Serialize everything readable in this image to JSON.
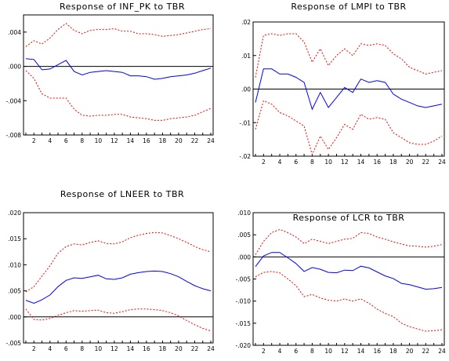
{
  "chart_data": [
    {
      "type": "line",
      "title": "Response of INF_PK to TBR",
      "x": [
        1,
        2,
        3,
        4,
        5,
        6,
        7,
        8,
        9,
        10,
        11,
        12,
        13,
        14,
        15,
        16,
        17,
        18,
        19,
        20,
        21,
        22,
        23,
        24
      ],
      "ylim": [
        -0.008,
        0.006
      ],
      "yticks": [
        ".004",
        ".000",
        "-.004",
        "-.008"
      ],
      "ytick_values": [
        0.004,
        0.0,
        -0.004,
        -0.008
      ],
      "xticks": [
        "2",
        "4",
        "6",
        "8",
        "10",
        "12",
        "14",
        "16",
        "18",
        "20",
        "22",
        "24"
      ],
      "series": [
        {
          "role": "response",
          "color": "#0000ff",
          "style": "solid",
          "values": [
            0.0009,
            0.0008,
            -0.0004,
            -0.0003,
            0.0002,
            0.0007,
            -0.0006,
            -0.001,
            -0.0007,
            -0.0006,
            -0.0005,
            -0.0006,
            -0.0007,
            -0.0011,
            -0.0011,
            -0.0012,
            -0.0015,
            -0.0014,
            -0.0012,
            -0.0011,
            -0.001,
            -0.0008,
            -0.0005,
            -0.0002
          ]
        },
        {
          "role": "upper",
          "color": "#ff0000",
          "style": "dashed",
          "values": [
            0.0023,
            0.003,
            0.0026,
            0.0033,
            0.0043,
            0.005,
            0.0042,
            0.0038,
            0.0042,
            0.0043,
            0.0043,
            0.0044,
            0.0041,
            0.0041,
            0.0038,
            0.0038,
            0.0037,
            0.0035,
            0.0036,
            0.0037,
            0.0039,
            0.0041,
            0.0043,
            0.0044
          ]
        },
        {
          "role": "lower",
          "color": "#ff0000",
          "style": "dashed",
          "values": [
            -0.0005,
            -0.0014,
            -0.0032,
            -0.0037,
            -0.0037,
            -0.0037,
            -0.005,
            -0.0057,
            -0.0058,
            -0.0057,
            -0.0057,
            -0.0056,
            -0.0056,
            -0.0059,
            -0.006,
            -0.0061,
            -0.0063,
            -0.0063,
            -0.0061,
            -0.006,
            -0.0059,
            -0.0057,
            -0.0053,
            -0.0049
          ]
        }
      ]
    },
    {
      "type": "line",
      "title": "Response of LMPI to TBR",
      "x": [
        1,
        2,
        3,
        4,
        5,
        6,
        7,
        8,
        9,
        10,
        11,
        12,
        13,
        14,
        15,
        16,
        17,
        18,
        19,
        20,
        21,
        22,
        23,
        24
      ],
      "ylim": [
        -0.02,
        0.02
      ],
      "yticks": [
        ".02",
        ".01",
        ".00",
        "-.01",
        "-.02"
      ],
      "ytick_values": [
        0.02,
        0.01,
        0.0,
        -0.01,
        -0.02
      ],
      "xticks": [
        "2",
        "4",
        "6",
        "8",
        "10",
        "12",
        "14",
        "16",
        "18",
        "20",
        "22",
        "24"
      ],
      "series": [
        {
          "role": "response",
          "color": "#0000ff",
          "style": "solid",
          "values": [
            -0.004,
            0.006,
            0.006,
            0.0045,
            0.0045,
            0.0035,
            0.002,
            -0.006,
            -0.001,
            -0.0055,
            -0.0025,
            0.0005,
            -0.001,
            0.003,
            0.002,
            0.0025,
            0.002,
            -0.0015,
            -0.003,
            -0.004,
            -0.005,
            -0.0055,
            -0.005,
            -0.0045
          ]
        },
        {
          "role": "upper",
          "color": "#ff0000",
          "style": "dashed",
          "values": [
            0.0035,
            0.016,
            0.0165,
            0.016,
            0.0165,
            0.0165,
            0.014,
            0.008,
            0.012,
            0.007,
            0.01,
            0.012,
            0.01,
            0.0135,
            0.013,
            0.0135,
            0.013,
            0.0105,
            0.009,
            0.0065,
            0.0055,
            0.0045,
            0.005,
            0.0055
          ]
        },
        {
          "role": "lower",
          "color": "#ff0000",
          "style": "dashed",
          "values": [
            -0.012,
            -0.0035,
            -0.0045,
            -0.007,
            -0.008,
            -0.0095,
            -0.011,
            -0.0195,
            -0.014,
            -0.018,
            -0.0145,
            -0.0105,
            -0.012,
            -0.0075,
            -0.009,
            -0.0085,
            -0.009,
            -0.013,
            -0.0145,
            -0.016,
            -0.0165,
            -0.0165,
            -0.0155,
            -0.014
          ]
        }
      ]
    },
    {
      "type": "line",
      "title": "Response of LNEER to TBR",
      "x": [
        1,
        2,
        3,
        4,
        5,
        6,
        7,
        8,
        9,
        10,
        11,
        12,
        13,
        14,
        15,
        16,
        17,
        18,
        19,
        20,
        21,
        22,
        23,
        24
      ],
      "ylim": [
        -0.005,
        0.02
      ],
      "yticks": [
        ".020",
        ".015",
        ".010",
        ".005",
        ".000",
        "-.005"
      ],
      "ytick_values": [
        0.02,
        0.015,
        0.01,
        0.005,
        0.0,
        -0.005
      ],
      "xticks": [
        "2",
        "4",
        "6",
        "8",
        "10",
        "12",
        "14",
        "16",
        "18",
        "20",
        "22",
        "24"
      ],
      "series": [
        {
          "role": "response",
          "color": "#0000ff",
          "style": "solid",
          "values": [
            0.0032,
            0.0026,
            0.0033,
            0.0042,
            0.0058,
            0.007,
            0.0075,
            0.0074,
            0.0077,
            0.008,
            0.0073,
            0.0072,
            0.0075,
            0.0082,
            0.0085,
            0.0087,
            0.0088,
            0.0087,
            0.0083,
            0.0077,
            0.0068,
            0.006,
            0.0054,
            0.005
          ]
        },
        {
          "role": "upper",
          "color": "#ff0000",
          "style": "dashed",
          "values": [
            0.0048,
            0.0058,
            0.0078,
            0.0098,
            0.0122,
            0.0135,
            0.014,
            0.0138,
            0.0143,
            0.0146,
            0.0141,
            0.014,
            0.0144,
            0.0152,
            0.0157,
            0.016,
            0.0162,
            0.0161,
            0.0156,
            0.015,
            0.0143,
            0.0135,
            0.0129,
            0.0125
          ]
        },
        {
          "role": "lower",
          "color": "#ff0000",
          "style": "dashed",
          "values": [
            0.0015,
            -0.0005,
            -0.0006,
            -0.0003,
            0.0003,
            0.0008,
            0.0012,
            0.0011,
            0.0012,
            0.0013,
            0.0008,
            0.0007,
            0.001,
            0.0014,
            0.0015,
            0.0015,
            0.0014,
            0.0012,
            0.0008,
            0.0002,
            -0.0007,
            -0.0015,
            -0.0022,
            -0.0027
          ]
        }
      ]
    },
    {
      "type": "line",
      "title": "Response of LCR to TBR",
      "x": [
        1,
        2,
        3,
        4,
        5,
        6,
        7,
        8,
        9,
        10,
        11,
        12,
        13,
        14,
        15,
        16,
        17,
        18,
        19,
        20,
        21,
        22,
        23,
        24
      ],
      "ylim": [
        -0.02,
        0.01
      ],
      "yticks": [
        ".010",
        ".005",
        ".000",
        "-.005",
        "-.010",
        "-.015",
        "-.020"
      ],
      "ytick_values": [
        0.01,
        0.005,
        0.0,
        -0.005,
        -0.01,
        -0.015,
        -0.02
      ],
      "xticks": [
        "2",
        "4",
        "6",
        "8",
        "10",
        "12",
        "14",
        "16",
        "18",
        "20",
        "22",
        "24"
      ],
      "series": [
        {
          "role": "response",
          "color": "#0000ff",
          "style": "solid",
          "values": [
            -0.0022,
            0.0002,
            0.001,
            0.001,
            -0.0002,
            -0.0015,
            -0.0033,
            -0.0024,
            -0.0028,
            -0.0035,
            -0.0036,
            -0.003,
            -0.0031,
            -0.0021,
            -0.0025,
            -0.0034,
            -0.0043,
            -0.0049,
            -0.006,
            -0.0063,
            -0.0068,
            -0.0073,
            -0.0072,
            -0.0069
          ]
        },
        {
          "role": "upper",
          "color": "#ff0000",
          "style": "dashed",
          "values": [
            0.0005,
            0.0035,
            0.0055,
            0.0062,
            0.0055,
            0.0045,
            0.003,
            0.004,
            0.0035,
            0.003,
            0.0035,
            0.004,
            0.0042,
            0.0055,
            0.0053,
            0.0045,
            0.004,
            0.0034,
            0.0029,
            0.0025,
            0.0024,
            0.0022,
            0.0024,
            0.0028
          ]
        },
        {
          "role": "lower",
          "color": "#ff0000",
          "style": "dashed",
          "values": [
            -0.0045,
            -0.0035,
            -0.0033,
            -0.0036,
            -0.005,
            -0.0065,
            -0.009,
            -0.0085,
            -0.0093,
            -0.0098,
            -0.01,
            -0.0095,
            -0.01,
            -0.0095,
            -0.0105,
            -0.0118,
            -0.0128,
            -0.0135,
            -0.015,
            -0.0158,
            -0.0163,
            -0.0168,
            -0.0167,
            -0.0165
          ]
        }
      ]
    }
  ]
}
